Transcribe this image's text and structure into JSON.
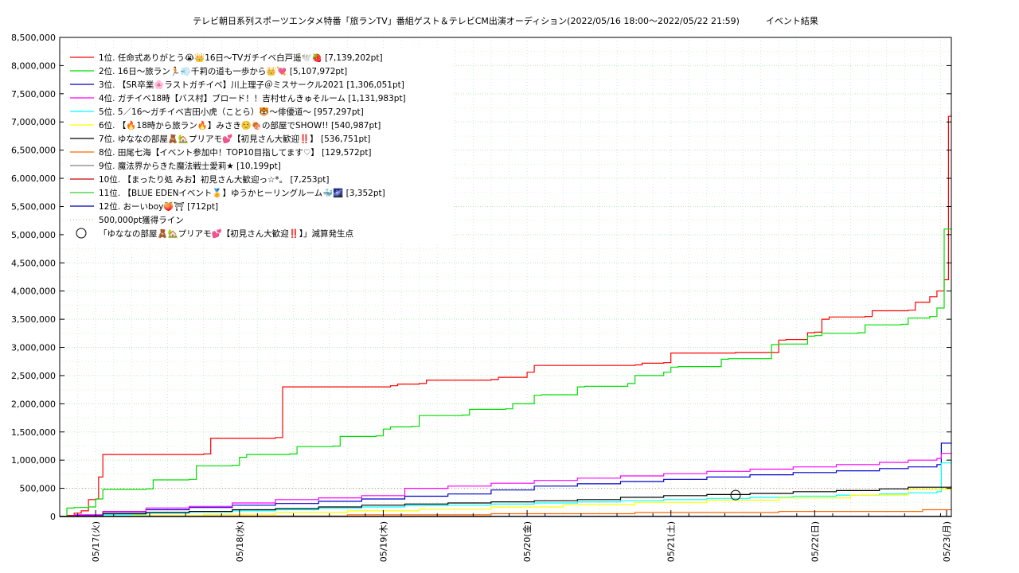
{
  "chart_data": {
    "type": "line",
    "title": "テレビ朝日系列スポーツエンタメ特番「旅ランTV」番組ゲスト＆テレビCM出演オーディション(2022/05/16 18:00〜2022/05/22 21:59)　　　イベント結果",
    "xlabel": "",
    "ylabel": "",
    "ylim": [
      0,
      8500000
    ],
    "xlim": [
      0,
      6.2
    ],
    "grid": true,
    "legend_position": "top-left",
    "y_ticks": [
      "0",
      "500,000",
      "1,000,000",
      "1,500,000",
      "2,000,000",
      "2,500,000",
      "3,000,000",
      "3,500,000",
      "4,000,000",
      "4,500,000",
      "5,000,000",
      "5,500,000",
      "6,000,000",
      "6,500,000",
      "7,000,000",
      "7,500,000",
      "8,000,000",
      "8,500,000"
    ],
    "x_ticks": [
      {
        "x": 0.25,
        "label": "05/17(火)"
      },
      {
        "x": 1.25,
        "label": "05/18(水)"
      },
      {
        "x": 2.25,
        "label": "05/19(木)"
      },
      {
        "x": 3.25,
        "label": "05/20(金)"
      },
      {
        "x": 4.25,
        "label": "05/21(土)"
      },
      {
        "x": 5.25,
        "label": "05/22(日)"
      },
      {
        "x": 6.25,
        "label": "05/23(月)"
      }
    ],
    "series": [
      {
        "name": "1位. 任命式ありがとう😭👑16日〜TVガチイベ白戸遥🕊️🍓 [7,139,202pt]",
        "color": "#ff0000",
        "x": [
          0,
          0.05,
          0.1,
          0.15,
          0.2,
          0.25,
          0.27,
          0.3,
          1.0,
          1.05,
          1.1,
          1.5,
          1.55,
          2.3,
          2.35,
          2.5,
          2.55,
          3.0,
          3.05,
          3.25,
          3.3,
          4.0,
          4.05,
          4.2,
          4.25,
          4.6,
          4.7,
          5.0,
          5.05,
          5.2,
          5.25,
          5.3,
          5.35,
          5.6,
          5.65,
          5.9,
          5.95,
          6.05,
          6.1,
          6.15,
          6.18,
          6.2
        ],
        "values": [
          0,
          20000,
          60000,
          100000,
          300000,
          310000,
          700000,
          1100000,
          1110000,
          1390000,
          1390000,
          1400000,
          2300000,
          2320000,
          2350000,
          2360000,
          2420000,
          2430000,
          2470000,
          2560000,
          2680000,
          2690000,
          2720000,
          2730000,
          2900000,
          2900000,
          2910000,
          3130000,
          3140000,
          3260000,
          3270000,
          3500000,
          3540000,
          3550000,
          3650000,
          3660000,
          3800000,
          3900000,
          4000000,
          4200000,
          7100000,
          7139202
        ]
      },
      {
        "name": "2位. 16日〜旅ラン🏃💨千莉の道も一歩から👑💘 [5,107,972pt]",
        "color": "#00dd00",
        "x": [
          0,
          0.05,
          0.1,
          0.2,
          0.25,
          0.3,
          0.6,
          0.65,
          0.9,
          0.95,
          1.2,
          1.25,
          1.3,
          1.6,
          1.65,
          1.9,
          1.95,
          2.2,
          2.25,
          2.3,
          2.45,
          2.5,
          2.8,
          2.85,
          3.1,
          3.15,
          3.3,
          3.35,
          3.6,
          3.65,
          3.95,
          4.0,
          4.2,
          4.25,
          4.3,
          4.6,
          4.65,
          4.95,
          5.0,
          5.2,
          5.25,
          5.3,
          5.55,
          5.6,
          5.85,
          5.9,
          6.05,
          6.1,
          6.15,
          6.2
        ],
        "values": [
          0,
          150000,
          160000,
          170000,
          310000,
          480000,
          490000,
          650000,
          660000,
          900000,
          910000,
          1050000,
          1100000,
          1110000,
          1240000,
          1250000,
          1420000,
          1430000,
          1550000,
          1590000,
          1600000,
          1790000,
          1800000,
          1900000,
          1910000,
          2000000,
          2150000,
          2160000,
          2300000,
          2310000,
          2360000,
          2500000,
          2560000,
          2650000,
          2660000,
          2790000,
          2800000,
          3050000,
          3060000,
          3200000,
          3210000,
          3250000,
          3260000,
          3400000,
          3410000,
          3520000,
          3550000,
          3700000,
          5100000,
          5107972
        ]
      },
      {
        "name": "3位. 【SR卒業🌸ラストガチイベ】川上理子＠ミスサークル2021 [1,306,051pt]",
        "color": "#0000cc",
        "x": [
          0,
          0.1,
          0.3,
          0.6,
          0.9,
          1.2,
          1.5,
          1.8,
          2.1,
          2.4,
          2.7,
          3.0,
          3.3,
          3.6,
          3.9,
          4.2,
          4.5,
          4.8,
          5.1,
          5.4,
          5.7,
          5.9,
          6.1,
          6.13,
          6.2
        ],
        "values": [
          0,
          20000,
          80000,
          120000,
          160000,
          200000,
          230000,
          270000,
          310000,
          360000,
          400000,
          470000,
          540000,
          580000,
          620000,
          660000,
          700000,
          740000,
          780000,
          810000,
          850000,
          880000,
          920000,
          1300000,
          1306051
        ]
      },
      {
        "name": "4位. ガチイベ18時【バス村】ブロード！！吉村せんきゅそルーム [1,131,983pt]",
        "color": "#ff00ff",
        "x": [
          0,
          0.1,
          0.3,
          0.6,
          0.9,
          1.2,
          1.5,
          1.8,
          2.1,
          2.4,
          2.7,
          3.0,
          3.3,
          3.6,
          3.9,
          4.2,
          4.5,
          4.8,
          5.1,
          5.4,
          5.7,
          5.9,
          6.1,
          6.13,
          6.2
        ],
        "values": [
          0,
          30000,
          90000,
          150000,
          180000,
          240000,
          300000,
          330000,
          370000,
          500000,
          540000,
          590000,
          640000,
          680000,
          720000,
          760000,
          800000,
          840000,
          880000,
          920000,
          960000,
          1000000,
          1030000,
          1120000,
          1131983
        ]
      },
      {
        "name": "5位. 5／16〜ガチイベ吉田小虎（ことら）🐯〜俳優道〜 [957,297pt]",
        "color": "#00ffff",
        "x": [
          0,
          0.3,
          0.6,
          0.9,
          1.2,
          1.5,
          1.8,
          2.1,
          2.4,
          2.7,
          3.0,
          3.3,
          3.6,
          3.9,
          4.2,
          4.5,
          4.8,
          5.1,
          5.4,
          5.7,
          5.9,
          6.1,
          6.13,
          6.2
        ],
        "values": [
          0,
          30000,
          60000,
          80000,
          100000,
          120000,
          150000,
          170000,
          190000,
          200000,
          220000,
          240000,
          260000,
          280000,
          300000,
          320000,
          340000,
          360000,
          380000,
          400000,
          420000,
          440000,
          950000,
          957297
        ]
      },
      {
        "name": "6位. 【🔥18時から旅ラン🔥】みさき☺️🍖の部屋でSHOW!! [540,987pt]",
        "color": "#ffff00",
        "x": [
          0,
          0.5,
          1.0,
          1.5,
          2.0,
          2.5,
          3.0,
          3.5,
          4.0,
          4.5,
          5.0,
          5.5,
          5.9,
          6.2
        ],
        "values": [
          0,
          20000,
          40000,
          70000,
          100000,
          130000,
          170000,
          210000,
          250000,
          290000,
          330000,
          380000,
          480000,
          540987
        ]
      },
      {
        "name": "7位. ゆななの部屋🧸🏡プリアモ💕【初見さん大歓迎‼️】 [536,751pt]",
        "color": "#000000",
        "x": [
          0,
          0.3,
          0.6,
          0.9,
          1.2,
          1.5,
          1.8,
          2.1,
          2.4,
          2.7,
          3.0,
          3.3,
          3.6,
          3.9,
          4.2,
          4.5,
          4.8,
          5.1,
          5.4,
          5.7,
          5.9,
          6.2
        ],
        "values": [
          0,
          50000,
          70000,
          90000,
          120000,
          140000,
          170000,
          200000,
          220000,
          240000,
          260000,
          280000,
          300000,
          340000,
          370000,
          390000,
          410000,
          440000,
          460000,
          490000,
          520000,
          536751
        ]
      },
      {
        "name": "8位. 田尾七海【イベント参加中！TOP10目指してます♡】 [129,572pt]",
        "color": "#ff6600",
        "x": [
          0,
          1.0,
          2.0,
          3.0,
          4.0,
          5.0,
          6.0,
          6.2
        ],
        "values": [
          0,
          10000,
          30000,
          50000,
          70000,
          90000,
          120000,
          129572
        ]
      },
      {
        "name": "9位. 魔法界からきた魔法戦士愛莉★ [10,199pt]",
        "color": "#808080",
        "x": [
          0,
          3.0,
          6.2
        ],
        "values": [
          0,
          5000,
          10199
        ]
      },
      {
        "name": "10位. 【まったり処 みお】初見さん大歓迎っ☆*。 [7,253pt]",
        "color": "#cc0000",
        "x": [
          0,
          3.0,
          6.2
        ],
        "values": [
          0,
          4000,
          7253
        ]
      },
      {
        "name": "11位. 【BLUE EDENイベント🏅】ゆうかヒーリングルーム🐳🌌 [3,352pt]",
        "color": "#33cc33",
        "x": [
          0,
          3.0,
          6.2
        ],
        "values": [
          0,
          2000,
          3352
        ]
      },
      {
        "name": "12位. おーいboy🍑⛩ [712pt]",
        "color": "#0000aa",
        "x": [
          0,
          3.0,
          6.2
        ],
        "values": [
          0,
          300,
          712
        ]
      }
    ],
    "reference_line": {
      "name": "500,000pt獲得ライン",
      "value": 500000,
      "color": "#dd8888"
    },
    "annotation": {
      "name": "「ゆななの部屋🧸🏡プリアモ💕【初見さん大歓迎‼️】」減算発生点",
      "x": 4.7,
      "y": 380000
    }
  }
}
